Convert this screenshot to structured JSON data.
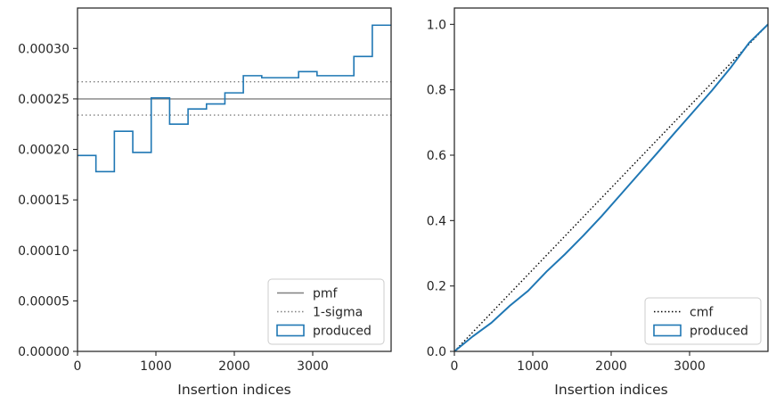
{
  "chart_data": [
    {
      "type": "histogram-step",
      "xlabel": "Insertion indices",
      "ylabel": "",
      "xlim": [
        0,
        4000
      ],
      "ylim": [
        0,
        0.00034
      ],
      "xticks": [
        0,
        1000,
        2000,
        3000
      ],
      "xtick_labels": [
        "0",
        "1000",
        "2000",
        "3000"
      ],
      "yticks": [
        0,
        5e-05,
        0.0001,
        0.00015,
        0.0002,
        0.00025,
        0.0003
      ],
      "ytick_labels": [
        "0.00000",
        "0.00005",
        "0.00010",
        "0.00015",
        "0.00020",
        "0.00025",
        "0.00030"
      ],
      "legend_position": "lower-right",
      "legend": [
        {
          "label": "pmf",
          "style": "solid",
          "color": "#808080"
        },
        {
          "label": "1-sigma",
          "style": "dotted",
          "color": "#808080"
        },
        {
          "label": "produced",
          "style": "box",
          "color": "#1f77b4"
        }
      ],
      "hlines": [
        {
          "name": "pmf",
          "y": 0.00025,
          "style": "solid",
          "color": "#808080"
        },
        {
          "name": "1-sigma",
          "y": 0.000267,
          "style": "dotted",
          "color": "#808080"
        },
        {
          "name": "1-sigma",
          "y": 0.000234,
          "style": "dotted",
          "color": "#808080"
        }
      ],
      "series": [
        {
          "name": "produced",
          "color": "#1f77b4",
          "bin_edges": [
            0,
            235,
            470,
            705,
            940,
            1175,
            1410,
            1645,
            1880,
            2115,
            2350,
            2585,
            2820,
            3055,
            3290,
            3525,
            3760,
            4000
          ],
          "values": [
            0.000194,
            0.000178,
            0.000218,
            0.000197,
            0.000251,
            0.000225,
            0.00024,
            0.000245,
            0.000256,
            0.000273,
            0.000271,
            0.000271,
            0.000277,
            0.000273,
            0.000273,
            0.000292,
            0.000323
          ]
        }
      ]
    },
    {
      "type": "line",
      "xlabel": "Insertion indices",
      "ylabel": "",
      "xlim": [
        0,
        4000
      ],
      "ylim": [
        0,
        1.05
      ],
      "xticks": [
        0,
        1000,
        2000,
        3000
      ],
      "xtick_labels": [
        "0",
        "1000",
        "2000",
        "3000"
      ],
      "yticks": [
        0,
        0.2,
        0.4,
        0.6,
        0.8,
        1.0
      ],
      "ytick_labels": [
        "0.0",
        "0.2",
        "0.4",
        "0.6",
        "0.8",
        "1.0"
      ],
      "legend_position": "lower-right",
      "legend": [
        {
          "label": "cmf",
          "style": "dotted",
          "color": "#000000"
        },
        {
          "label": "produced",
          "style": "box",
          "color": "#1f77b4"
        }
      ],
      "series": [
        {
          "name": "cmf",
          "style": "dotted",
          "color": "#000000",
          "x": [
            0,
            4000
          ],
          "y": [
            0,
            1.0
          ]
        },
        {
          "name": "produced",
          "style": "solid",
          "color": "#1f77b4",
          "x": [
            0,
            235,
            470,
            705,
            940,
            1175,
            1410,
            1645,
            1880,
            2115,
            2350,
            2585,
            2820,
            3055,
            3290,
            3525,
            3760,
            4000
          ],
          "y": [
            0,
            0.046,
            0.087,
            0.139,
            0.185,
            0.244,
            0.297,
            0.354,
            0.414,
            0.478,
            0.542,
            0.606,
            0.671,
            0.735,
            0.799,
            0.868,
            0.944,
            1.0
          ]
        }
      ]
    }
  ]
}
